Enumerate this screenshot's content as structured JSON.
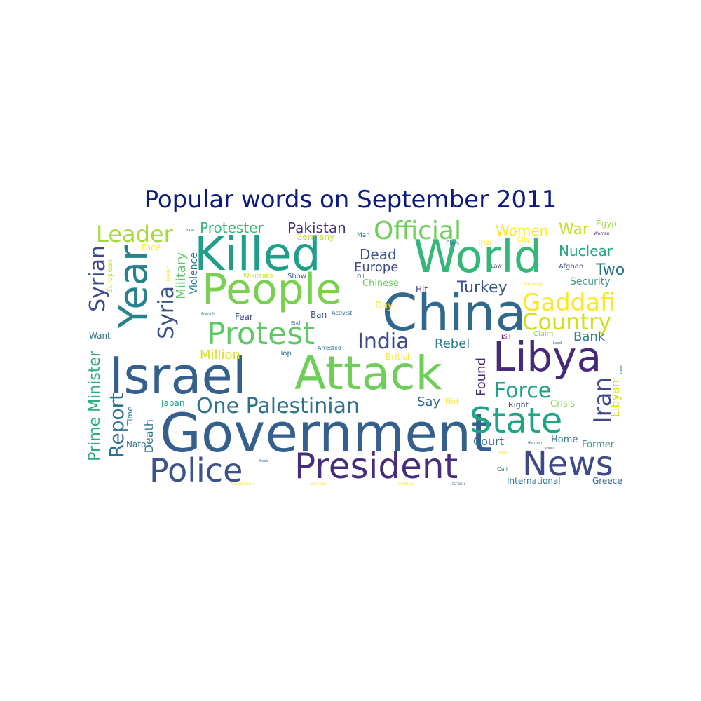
{
  "title": "Popular words on September 2011",
  "chart_data": {
    "type": "wordcloud",
    "title": "Popular words on September 2011",
    "colors": {
      "title": "#0c1a80",
      "palette": [
        "#440154",
        "#3b528b",
        "#21918c",
        "#5ec962",
        "#fde725"
      ]
    },
    "words": [
      {
        "text": "Government",
        "color": "#355f8d"
      },
      {
        "text": "Israel",
        "color": "#355f8d"
      },
      {
        "text": "Attack",
        "color": "#6ece58"
      },
      {
        "text": "China",
        "color": "#31688e"
      },
      {
        "text": "World",
        "color": "#35b779"
      },
      {
        "text": "Killed",
        "color": "#1f9e89"
      },
      {
        "text": "People",
        "color": "#7ad151"
      },
      {
        "text": "Year",
        "color": "#26828e"
      },
      {
        "text": "Libya",
        "color": "#482878"
      },
      {
        "text": "President",
        "color": "#472d7b"
      },
      {
        "text": "News",
        "color": "#3e4989"
      },
      {
        "text": "Police",
        "color": "#3b528b"
      },
      {
        "text": "State",
        "color": "#20a486"
      },
      {
        "text": "Protest",
        "color": "#5ec962"
      },
      {
        "text": "Official",
        "color": "#6ece58"
      },
      {
        "text": "Leader",
        "color": "#a5db36"
      },
      {
        "text": "One Palestinian",
        "color": "#2c728e"
      },
      {
        "text": "Syrian",
        "color": "#3e4989"
      },
      {
        "text": "Syria",
        "color": "#3b528b"
      },
      {
        "text": "Gaddafi",
        "color": "#fde725"
      },
      {
        "text": "Country",
        "color": "#d0e11c"
      },
      {
        "text": "India",
        "color": "#3e4989"
      },
      {
        "text": "Iran",
        "color": "#3e4989"
      },
      {
        "text": "Force",
        "color": "#1fa187"
      },
      {
        "text": "Report",
        "color": "#2c728e"
      },
      {
        "text": "Prime Minister",
        "color": "#29af7f"
      },
      {
        "text": "Turkey",
        "color": "#3b528b"
      },
      {
        "text": "Pakistan",
        "color": "#46327e"
      },
      {
        "text": "Protester",
        "color": "#37b878"
      },
      {
        "text": "Nuclear",
        "color": "#22a884"
      },
      {
        "text": "War",
        "color": "#c2df23"
      },
      {
        "text": "Women",
        "color": "#fde725"
      },
      {
        "text": "Two",
        "color": "#2c728e"
      },
      {
        "text": "Dead",
        "color": "#3b528b"
      },
      {
        "text": "Europe",
        "color": "#3e4989"
      },
      {
        "text": "Million",
        "color": "#d8e219"
      },
      {
        "text": "Rebel",
        "color": "#2a788e"
      },
      {
        "text": "Bank",
        "color": "#26828e"
      },
      {
        "text": "Military",
        "color": "#5ec962"
      },
      {
        "text": "Found",
        "color": "#482878"
      },
      {
        "text": "Say",
        "color": "#31688e"
      },
      {
        "text": "Court",
        "color": "#2c728e"
      },
      {
        "text": "Libyan",
        "color": "#d0e11c"
      },
      {
        "text": "Death",
        "color": "#2c728e"
      },
      {
        "text": "Security",
        "color": "#3b9b8b"
      },
      {
        "text": "Violence",
        "color": "#2a788e"
      },
      {
        "text": "Chinese",
        "color": "#6ece58"
      },
      {
        "text": "Germany",
        "color": "#c2df23"
      },
      {
        "text": "Face",
        "color": "#fde725"
      },
      {
        "text": "Hit",
        "color": "#443983"
      },
      {
        "text": "Day",
        "color": "#fde725"
      },
      {
        "text": "Crisis",
        "color": "#86d549"
      },
      {
        "text": "Home",
        "color": "#2c728e"
      },
      {
        "text": "Former",
        "color": "#3b9b8b"
      },
      {
        "text": "Right",
        "color": "#3e4989"
      },
      {
        "text": "Want",
        "color": "#2c728e"
      },
      {
        "text": "Fear",
        "color": "#3e4989"
      },
      {
        "text": "Ban",
        "color": "#3b528b"
      },
      {
        "text": "British",
        "color": "#fde725"
      },
      {
        "text": "Japan",
        "color": "#1f9e89"
      },
      {
        "text": "Time",
        "color": "#2a788e"
      },
      {
        "text": "Nato",
        "color": "#2c728e"
      },
      {
        "text": "International",
        "color": "#2a788e"
      },
      {
        "text": "Greece",
        "color": "#31688e"
      },
      {
        "text": "European",
        "color": "#c2df23"
      },
      {
        "text": "Egypt",
        "color": "#a5db36"
      },
      {
        "text": "City",
        "color": "#fde725"
      },
      {
        "text": "Trial",
        "color": "#fde725"
      },
      {
        "text": "Plan",
        "color": "#2c728e"
      },
      {
        "text": "Man",
        "color": "#2c728e"
      },
      {
        "text": "Afghan",
        "color": "#3e4989"
      },
      {
        "text": "Law",
        "color": "#3e4989"
      },
      {
        "text": "Show",
        "color": "#355f8d"
      },
      {
        "text": "Oil",
        "color": "#2c728e"
      },
      {
        "text": "Wikileaks",
        "color": "#c2df23"
      },
      {
        "text": "Top",
        "color": "#2c728e"
      },
      {
        "text": "Arrested",
        "color": "#2c728e"
      },
      {
        "text": "Activist",
        "color": "#355f8d"
      },
      {
        "text": "Claim",
        "color": "#86d549"
      },
      {
        "text": "Kill",
        "color": "#440154"
      },
      {
        "text": "Bid",
        "color": "#fde725"
      },
      {
        "text": "Call",
        "color": "#2c728e"
      },
      {
        "text": "Near",
        "color": "#fde725"
      },
      {
        "text": "End",
        "color": "#2c728e"
      },
      {
        "text": "French",
        "color": "#2c728e"
      },
      {
        "text": "Embassy",
        "color": "#fde725"
      },
      {
        "text": "Woman",
        "color": "#482878"
      },
      {
        "text": "Lead",
        "color": "#2c728e"
      },
      {
        "text": "Head",
        "color": "#2c728e"
      },
      {
        "text": "Base",
        "color": "#2c728e"
      },
      {
        "text": "Seek",
        "color": "#2c728e"
      },
      {
        "text": "Opposition",
        "color": "#fde725"
      },
      {
        "text": "Election",
        "color": "#fde725"
      },
      {
        "text": "Political",
        "color": "#fde725"
      },
      {
        "text": "Israeli",
        "color": "#3b528b"
      },
      {
        "text": "Billion",
        "color": "#fde725"
      },
      {
        "text": "Korea",
        "color": "#3b528b"
      },
      {
        "text": "German",
        "color": "#3b528b"
      }
    ]
  }
}
